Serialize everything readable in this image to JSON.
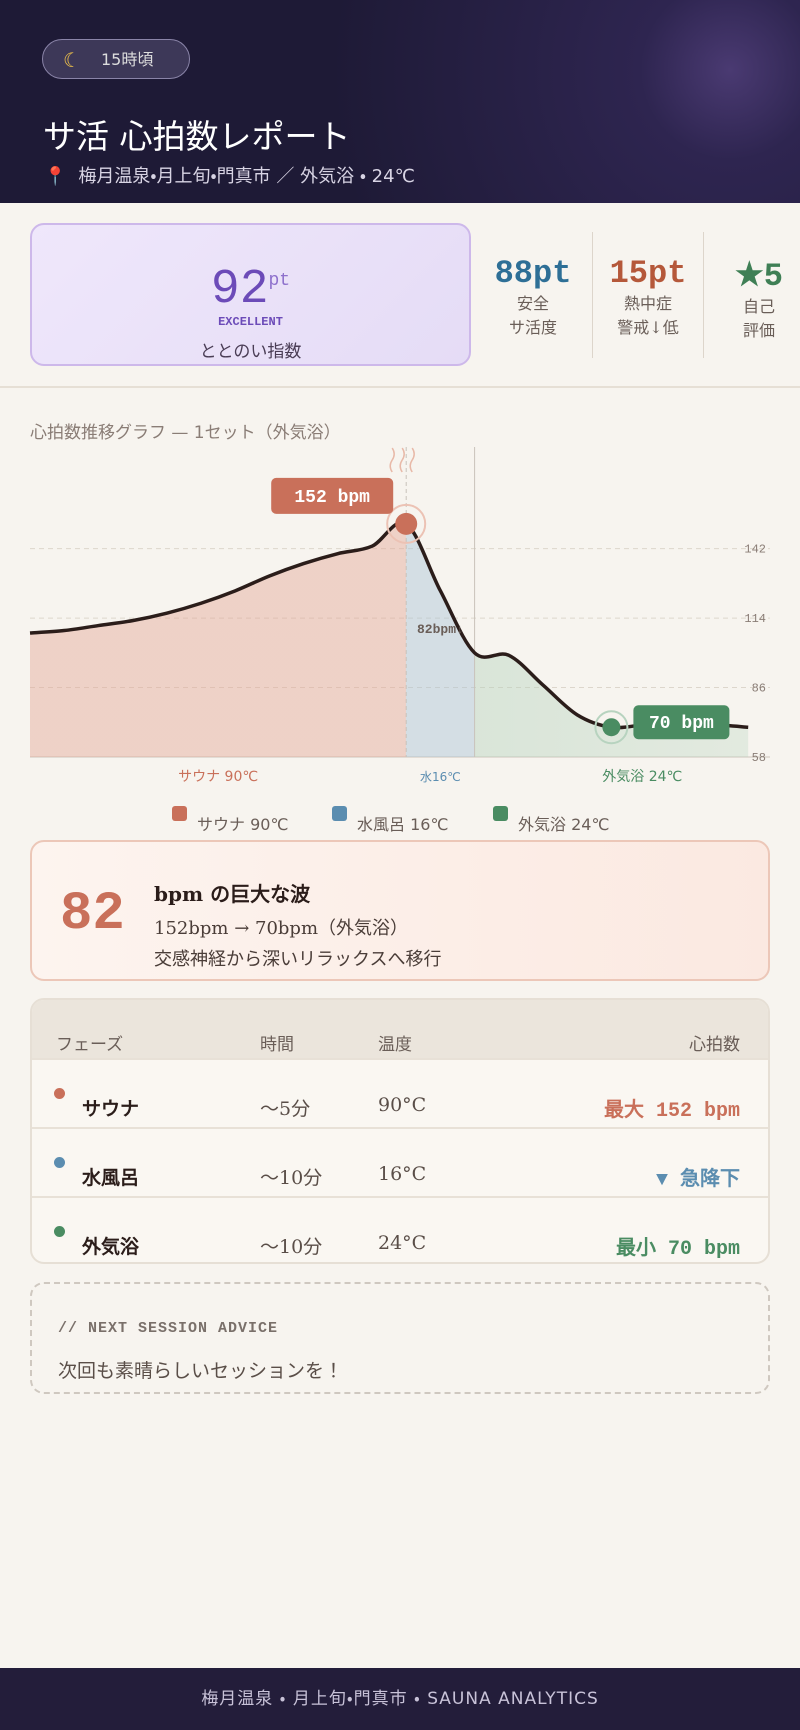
{
  "header": {
    "badge": "15時頃",
    "title": "サ活 心拍数レポート",
    "location": "梅月温泉・月上旬・門真市 ／ 外気浴 ・ 24℃"
  },
  "scores": {
    "main": {
      "value": "92",
      "unit": "pt",
      "grade": "EXCELLENT",
      "label": "ととのい指数"
    },
    "cards": [
      {
        "value": "88pt",
        "label_lines": [
          "安全",
          "サ活度"
        ]
      },
      {
        "value": "15pt",
        "label_lines": [
          "熱中症",
          "警戒↓低"
        ]
      },
      {
        "value": "★5",
        "label_lines": [
          "自己",
          "評価"
        ]
      }
    ]
  },
  "chart_data": {
    "type": "line",
    "title": "心拍数推移グラフ — 1セット（外気浴）",
    "categories": [
      null,
      null,
      null,
      null,
      null,
      null,
      null,
      null,
      null,
      null,
      null,
      null,
      null,
      null,
      null,
      null,
      null,
      null,
      null,
      null,
      null,
      null
    ],
    "series": [
      {
        "color": "#2b1d1a",
        "values": [
          108,
          109,
          111,
          113,
          116,
          120,
          125,
          131,
          136,
          140,
          143,
          152,
          125,
          100,
          99,
          87,
          75,
          70,
          71,
          71,
          71,
          70
        ]
      }
    ],
    "ylim": [
      58,
      183
    ],
    "yticks": [
      58,
      86,
      114,
      142
    ],
    "grid": true,
    "annotations": {
      "peak": "152 bpm",
      "drop": "82bpm↓",
      "low": "70 bpm"
    },
    "region_labels": [
      "サウナ 90℃",
      "水16℃",
      "外気浴 24℃"
    ],
    "phases": [
      {
        "name": "サウナ 90℃",
        "color": "#c9705a"
      },
      {
        "name": "水風呂 16℃",
        "color": "#5b8db0"
      },
      {
        "name": "外気浴 24℃",
        "color": "#4a8c62"
      }
    ]
  },
  "wave": {
    "value": "82",
    "heading": "bpm の巨大な波",
    "lines": [
      "152bpm → 70bpm（外気浴）",
      "交感神経から深いリラックスへ移行"
    ]
  },
  "table": {
    "header": [
      "フェーズ",
      "時間",
      "温度",
      "心拍数"
    ],
    "rows": [
      [
        "サウナ",
        "〜5分",
        "90°C",
        "最大 152 bpm"
      ],
      [
        "水風呂",
        "〜10分",
        "16°C",
        "▼ 急降下"
      ],
      [
        "外気浴",
        "〜10分",
        "24°C",
        "最小 70 bpm"
      ]
    ]
  },
  "advice": {
    "title": "// NEXT SESSION ADVICE",
    "text": "次回も素晴らしいセッションを！"
  },
  "footer": "梅月温泉 ・ 月上旬・門真市 ・ SAUNA ANALYTICS"
}
